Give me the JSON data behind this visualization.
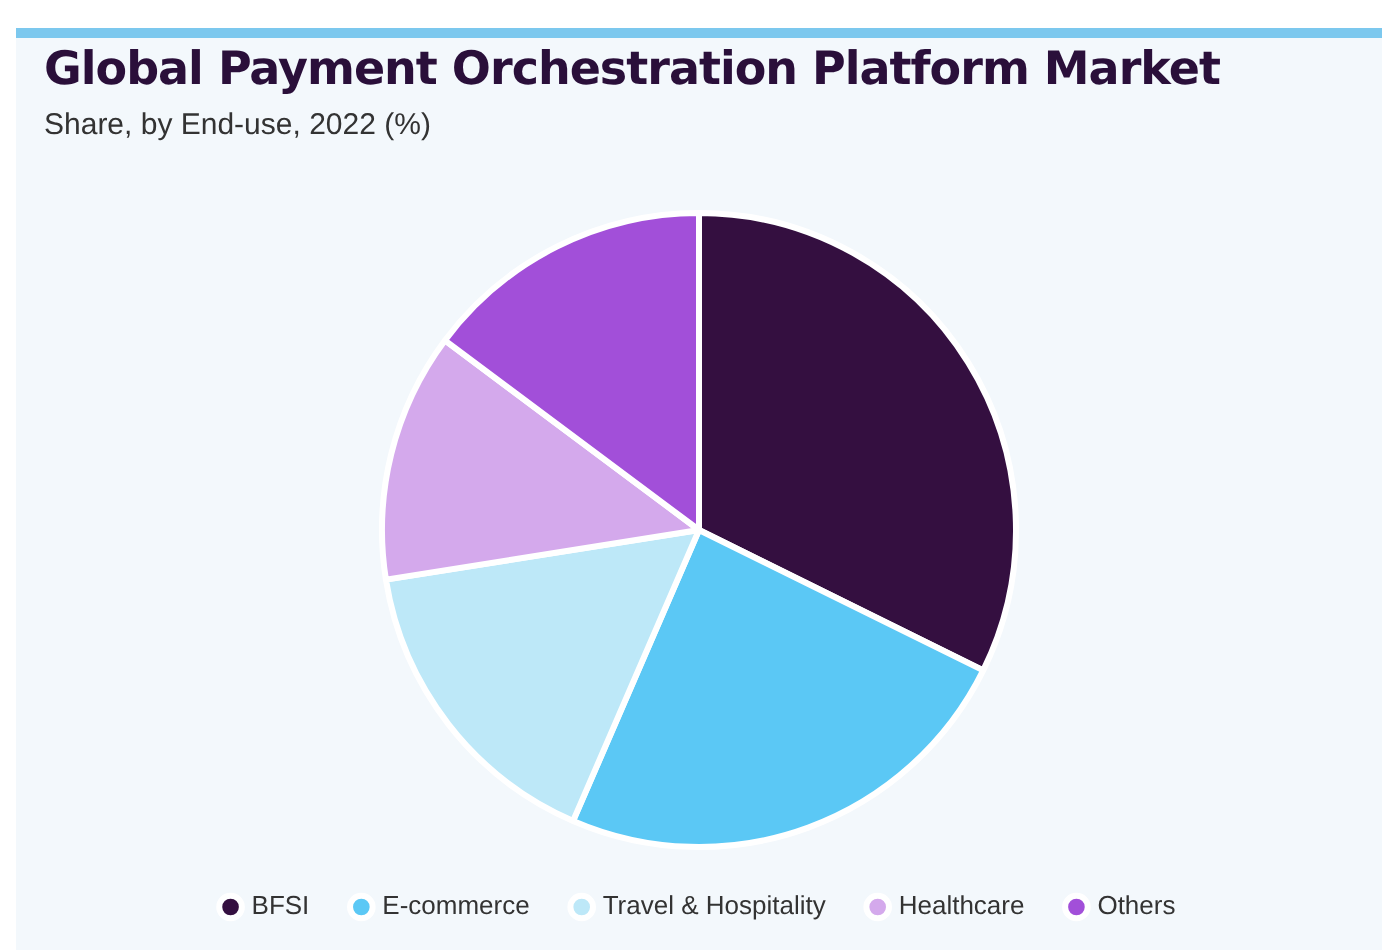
{
  "chart_data": {
    "type": "pie",
    "title": "Global Payment Orchestration Platform Market",
    "subtitle": "Share, by End-use, 2022 (%)",
    "categories": [
      "BFSI",
      "E-commerce",
      "Travel & Hospitality",
      "Healthcare",
      "Others"
    ],
    "values": [
      32.3,
      24.2,
      16,
      12.7,
      14.8
    ],
    "colors": [
      "#340f40",
      "#5bc8f5",
      "#bde8f8",
      "#d4a9ec",
      "#a24fd9"
    ],
    "legend": "bottom"
  }
}
